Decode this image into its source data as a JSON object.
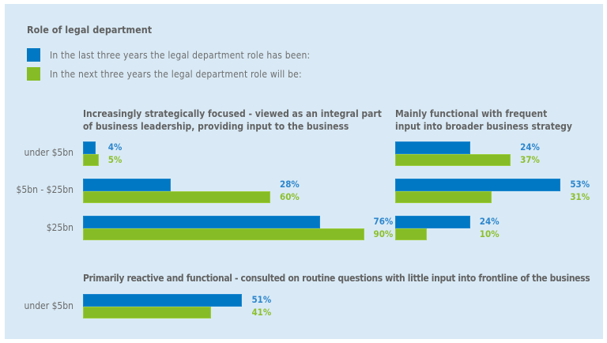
{
  "title": "Role of legal department",
  "legend": [
    {
      "label": "In the last three years the legal department role has been:",
      "color": "#0078c3"
    },
    {
      "label": "In the next three years the legal department role will be:",
      "color": "#86bc25"
    }
  ],
  "chart_data": [
    {
      "type": "bar",
      "orientation": "horizontal",
      "title": "Increasingly strategically focused - viewed as an integral part of business leadership, providing input to the business",
      "title_lines": [
        "Increasingly strategically focused - viewed as an integral part",
        "of business leadership, providing input to the business"
      ],
      "categories": [
        "under $5bn",
        "$5bn - $25bn",
        "$25bn"
      ],
      "series": [
        {
          "name": "In the last three years the legal department role has been:",
          "values": [
            4,
            28,
            76
          ],
          "labels": [
            "4%",
            "28%",
            "76%"
          ],
          "color": "#0078c3"
        },
        {
          "name": "In the next three years the legal department role will be:",
          "values": [
            5,
            60,
            90
          ],
          "labels": [
            "5%",
            "60%",
            "90%"
          ],
          "color": "#86bc25"
        }
      ],
      "unit": "%",
      "xlim": [
        0,
        100
      ],
      "grid": false
    },
    {
      "type": "bar",
      "orientation": "horizontal",
      "title": "Mainly functional with frequent input into broader business strategy",
      "title_lines": [
        "Mainly functional with frequent",
        "input into broader business strategy"
      ],
      "categories": [
        "under $5bn",
        "$5bn - $25bn",
        "$25bn"
      ],
      "series": [
        {
          "name": "In the last three years the legal department role has been:",
          "values": [
            24,
            53,
            24
          ],
          "labels": [
            "24%",
            "53%",
            "24%"
          ],
          "color": "#0078c3"
        },
        {
          "name": "In the next three years the legal department role will be:",
          "values": [
            37,
            31,
            10
          ],
          "labels": [
            "37%",
            "31%",
            "10%"
          ],
          "color": "#86bc25"
        }
      ],
      "unit": "%",
      "xlim": [
        0,
        100
      ],
      "grid": false
    },
    {
      "type": "bar",
      "orientation": "horizontal",
      "title": "Primarily reactive and functional - consulted on routine questions with little input into frontline of the business",
      "title_lines": [
        "Primarily reactive and functional - consulted on routine questions with little input into frontline of the business"
      ],
      "categories": [
        "under $5bn"
      ],
      "series": [
        {
          "name": "In the last three years the legal department role has been:",
          "values": [
            51
          ],
          "labels": [
            "51%"
          ],
          "color": "#0078c3"
        },
        {
          "name": "In the next three years the legal department role will be:",
          "values": [
            41
          ],
          "labels": [
            "41%"
          ],
          "color": "#86bc25"
        }
      ],
      "unit": "%",
      "xlim": [
        0,
        100
      ],
      "grid": false
    }
  ]
}
